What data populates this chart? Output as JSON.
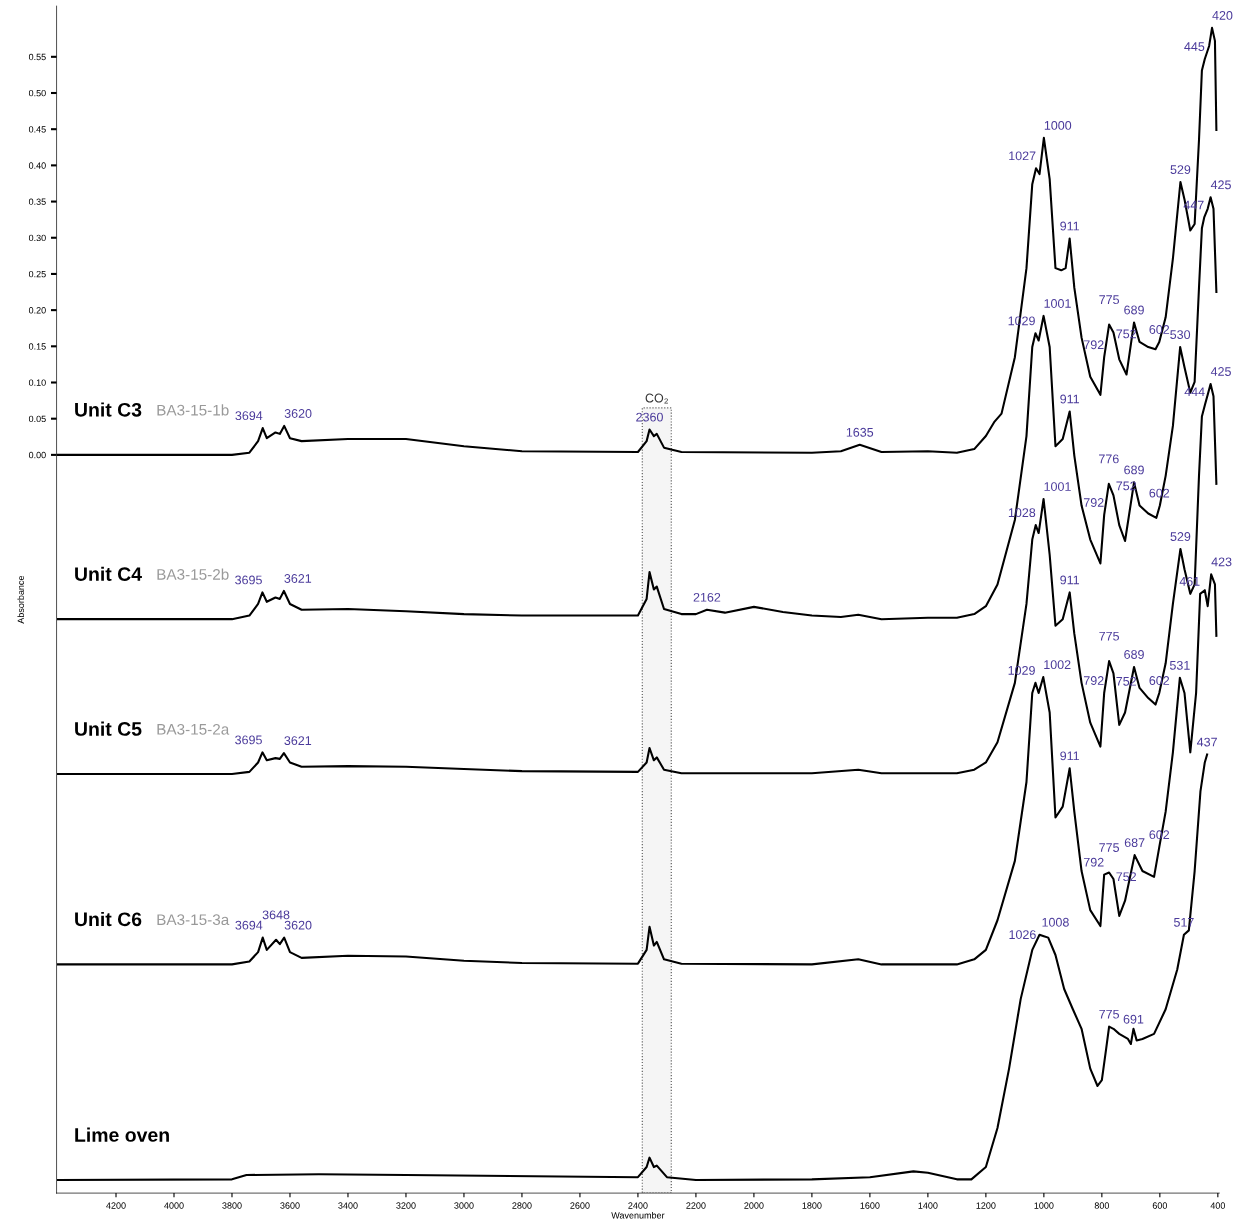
{
  "chart_data": {
    "type": "line",
    "xlabel": "Wavenumber",
    "ylabel": "Absorbance",
    "xlim": [
      4405,
      395
    ],
    "ylim": [
      -1.02,
      0.62
    ],
    "xticks": [
      4200,
      4000,
      3800,
      3600,
      3400,
      3200,
      3000,
      2800,
      2600,
      2400,
      2200,
      2000,
      1800,
      1600,
      1400,
      1200,
      1000,
      800,
      600,
      400
    ],
    "yticks": [
      {
        "value": 0,
        "label": "0.00"
      },
      {
        "value": 0.05,
        "label": "0.05"
      },
      {
        "value": 0.1,
        "label": "0.10"
      },
      {
        "value": 0.15,
        "label": "0.15"
      },
      {
        "value": 0.2,
        "label": "0.20"
      },
      {
        "value": 0.25,
        "label": "0.25"
      },
      {
        "value": 0.3,
        "label": "0.30"
      },
      {
        "value": 0.35,
        "label": "0.35"
      },
      {
        "value": 0.4,
        "label": "0.40"
      },
      {
        "value": 0.45,
        "label": "0.45"
      },
      {
        "value": 0.5,
        "label": "0.50"
      },
      {
        "value": 0.55,
        "label": "0.55"
      }
    ],
    "tick_labels": true,
    "grid": false,
    "legend": false,
    "marker": "none",
    "line_style": "solid",
    "bands": [
      {
        "axis": "x",
        "from": 2385,
        "to": 2285,
        "label": "CO₂",
        "color": "#555555"
      }
    ],
    "series": [
      {
        "name": "Unit C3",
        "color": "#000000",
        "x": [
          4400,
          3800,
          3740,
          3710,
          3694,
          3680,
          3650,
          3635,
          3620,
          3600,
          3560,
          3400,
          3200,
          3000,
          2800,
          2400,
          2370,
          2360,
          2345,
          2335,
          2310,
          2250,
          1800,
          1700,
          1635,
          1560,
          1400,
          1300,
          1240,
          1200,
          1170,
          1146,
          1100,
          1060,
          1040,
          1027,
          1015,
          1000,
          980,
          960,
          940,
          925,
          911,
          895,
          870,
          840,
          805,
          792,
          775,
          760,
          740,
          715,
          689,
          670,
          640,
          615,
          602,
          580,
          555,
          529,
          515,
          495,
          480,
          465,
          455,
          445,
          430,
          420,
          410,
          405
        ],
        "values": [
          0,
          0,
          0.003,
          0.019,
          0.037,
          0.023,
          0.031,
          0.029,
          0.04,
          0.023,
          0.019,
          0.022,
          0.022,
          0.012,
          0.005,
          0.004,
          0.019,
          0.035,
          0.026,
          0.029,
          0.01,
          0.004,
          0.003,
          0.005,
          0.014,
          0.004,
          0.005,
          0.003,
          0.008,
          0.026,
          0.046,
          0.057,
          0.135,
          0.258,
          0.374,
          0.396,
          0.388,
          0.438,
          0.381,
          0.258,
          0.255,
          0.258,
          0.299,
          0.231,
          0.162,
          0.108,
          0.083,
          0.135,
          0.18,
          0.169,
          0.132,
          0.111,
          0.183,
          0.156,
          0.149,
          0.146,
          0.156,
          0.19,
          0.271,
          0.377,
          0.353,
          0.31,
          0.319,
          0.435,
          0.531,
          0.547,
          0.565,
          0.59,
          0.572,
          0.449
        ]
      },
      {
        "name": "Unit C4",
        "color": "#000000",
        "x": [
          4400,
          3800,
          3740,
          3710,
          3695,
          3680,
          3650,
          3635,
          3621,
          3600,
          3560,
          3400,
          3200,
          3000,
          2800,
          2400,
          2370,
          2360,
          2345,
          2335,
          2310,
          2250,
          2200,
          2162,
          2100,
          2000,
          1900,
          1800,
          1700,
          1640,
          1560,
          1400,
          1300,
          1240,
          1200,
          1160,
          1100,
          1060,
          1040,
          1029,
          1018,
          1001,
          980,
          960,
          935,
          911,
          895,
          870,
          840,
          805,
          792,
          776,
          760,
          740,
          720,
          689,
          670,
          640,
          612,
          600,
          580,
          555,
          530,
          515,
          495,
          480,
          465,
          455,
          447,
          435,
          425,
          415,
          405
        ],
        "values": [
          -0.227,
          -0.227,
          -0.222,
          -0.206,
          -0.19,
          -0.203,
          -0.197,
          -0.199,
          -0.188,
          -0.206,
          -0.214,
          -0.213,
          -0.216,
          -0.22,
          -0.222,
          -0.222,
          -0.199,
          -0.162,
          -0.186,
          -0.182,
          -0.213,
          -0.22,
          -0.22,
          -0.214,
          -0.218,
          -0.21,
          -0.217,
          -0.222,
          -0.224,
          -0.221,
          -0.227,
          -0.225,
          -0.225,
          -0.22,
          -0.209,
          -0.179,
          -0.09,
          0.026,
          0.149,
          0.168,
          0.158,
          0.192,
          0.149,
          0.012,
          0.022,
          0.06,
          -0.001,
          -0.07,
          -0.117,
          -0.15,
          -0.083,
          -0.04,
          -0.056,
          -0.097,
          -0.119,
          -0.038,
          -0.07,
          -0.081,
          -0.087,
          -0.07,
          -0.029,
          0.04,
          0.149,
          0.121,
          0.086,
          0.101,
          0.231,
          0.313,
          0.328,
          0.34,
          0.356,
          0.34,
          0.225
        ]
      },
      {
        "name": "Unit C5",
        "color": "#000000",
        "x": [
          4400,
          3800,
          3740,
          3710,
          3695,
          3680,
          3650,
          3635,
          3621,
          3600,
          3560,
          3400,
          3200,
          3000,
          2800,
          2400,
          2370,
          2360,
          2345,
          2335,
          2310,
          2250,
          1800,
          1640,
          1560,
          1300,
          1240,
          1200,
          1160,
          1100,
          1060,
          1040,
          1028,
          1018,
          1001,
          980,
          960,
          935,
          911,
          895,
          870,
          840,
          805,
          792,
          775,
          760,
          740,
          720,
          689,
          670,
          640,
          615,
          602,
          580,
          555,
          529,
          515,
          495,
          480,
          465,
          455,
          444,
          435,
          425,
          415,
          405
        ],
        "values": [
          -0.441,
          -0.441,
          -0.438,
          -0.425,
          -0.411,
          -0.422,
          -0.419,
          -0.42,
          -0.412,
          -0.425,
          -0.431,
          -0.43,
          -0.431,
          -0.434,
          -0.437,
          -0.438,
          -0.425,
          -0.405,
          -0.422,
          -0.418,
          -0.435,
          -0.44,
          -0.44,
          -0.435,
          -0.44,
          -0.44,
          -0.435,
          -0.425,
          -0.397,
          -0.315,
          -0.206,
          -0.117,
          -0.097,
          -0.108,
          -0.061,
          -0.138,
          -0.236,
          -0.227,
          -0.19,
          -0.247,
          -0.315,
          -0.37,
          -0.403,
          -0.329,
          -0.285,
          -0.302,
          -0.373,
          -0.356,
          -0.293,
          -0.322,
          -0.336,
          -0.345,
          -0.329,
          -0.288,
          -0.206,
          -0.13,
          -0.158,
          -0.192,
          -0.179,
          -0.029,
          0.053,
          0.07,
          0.083,
          0.098,
          0.081,
          -0.04
        ]
      },
      {
        "name": "Unit C6",
        "color": "#000000",
        "x": [
          4400,
          3800,
          3740,
          3710,
          3694,
          3680,
          3648,
          3635,
          3620,
          3600,
          3560,
          3400,
          3200,
          3000,
          2800,
          2400,
          2370,
          2360,
          2345,
          2335,
          2310,
          2250,
          1800,
          1640,
          1560,
          1300,
          1240,
          1200,
          1160,
          1100,
          1060,
          1040,
          1029,
          1018,
          1002,
          980,
          960,
          935,
          911,
          895,
          870,
          840,
          805,
          792,
          775,
          760,
          740,
          720,
          687,
          660,
          620,
          602,
          580,
          555,
          531,
          515,
          495,
          475,
          461,
          445,
          435,
          423,
          410,
          405
        ],
        "values": [
          -0.704,
          -0.704,
          -0.7,
          -0.687,
          -0.667,
          -0.684,
          -0.67,
          -0.676,
          -0.667,
          -0.687,
          -0.695,
          -0.692,
          -0.693,
          -0.699,
          -0.702,
          -0.703,
          -0.684,
          -0.652,
          -0.678,
          -0.673,
          -0.697,
          -0.703,
          -0.704,
          -0.697,
          -0.704,
          -0.704,
          -0.697,
          -0.684,
          -0.643,
          -0.561,
          -0.452,
          -0.329,
          -0.315,
          -0.329,
          -0.307,
          -0.356,
          -0.501,
          -0.486,
          -0.433,
          -0.493,
          -0.575,
          -0.629,
          -0.651,
          -0.58,
          -0.577,
          -0.586,
          -0.637,
          -0.616,
          -0.553,
          -0.575,
          -0.583,
          -0.542,
          -0.493,
          -0.411,
          -0.308,
          -0.329,
          -0.411,
          -0.329,
          -0.192,
          -0.187,
          -0.209,
          -0.165,
          -0.179,
          -0.25
        ]
      },
      {
        "name": "Lime oven",
        "color": "#000000",
        "x": [
          4400,
          3800,
          3750,
          3500,
          3200,
          2400,
          2370,
          2360,
          2345,
          2335,
          2300,
          2200,
          1800,
          1600,
          1450,
          1400,
          1300,
          1250,
          1200,
          1160,
          1120,
          1080,
          1040,
          1015,
          1000,
          985,
          960,
          930,
          900,
          870,
          840,
          815,
          800,
          785,
          775,
          760,
          740,
          710,
          700,
          691,
          680,
          660,
          620,
          580,
          540,
          517,
          500,
          480,
          460,
          445,
          437
        ],
        "values": [
          -1.002,
          -1.001,
          -0.995,
          -0.994,
          -0.995,
          -0.998,
          -0.984,
          -0.971,
          -0.984,
          -0.982,
          -0.998,
          -1.002,
          -1.001,
          -0.998,
          -0.99,
          -0.992,
          -1.001,
          -1.001,
          -0.984,
          -0.93,
          -0.848,
          -0.752,
          -0.684,
          -0.663,
          -0.665,
          -0.667,
          -0.691,
          -0.738,
          -0.766,
          -0.793,
          -0.848,
          -0.872,
          -0.864,
          -0.82,
          -0.79,
          -0.793,
          -0.8,
          -0.807,
          -0.814,
          -0.793,
          -0.809,
          -0.807,
          -0.8,
          -0.766,
          -0.711,
          -0.663,
          -0.657,
          -0.575,
          -0.465,
          -0.425,
          -0.414
        ]
      }
    ],
    "annotations": [
      "BA3-15-1b",
      "BA3-15-2b",
      "BA3-15-2a",
      "BA3-15-3a",
      {
        "text": "3694",
        "x": 3694,
        "y": 0.037
      },
      {
        "text": "3620",
        "x": 3620,
        "y": 0.04
      },
      {
        "text": "2360",
        "x": 2360,
        "y": 0.035
      },
      {
        "text": "1635",
        "x": 1635,
        "y": 0.014
      },
      {
        "text": "1027",
        "x": 1027,
        "y": 0.396
      },
      {
        "text": "1000",
        "x": 1000,
        "y": 0.438
      },
      {
        "text": "911",
        "x": 911,
        "y": 0.299
      },
      {
        "text": "792",
        "x": 792,
        "y": 0.135
      },
      {
        "text": "775",
        "x": 775,
        "y": 0.18
      },
      {
        "text": "752",
        "x": 752,
        "y": 0.15
      },
      {
        "text": "689",
        "x": 689,
        "y": 0.183
      },
      {
        "text": "602",
        "x": 602,
        "y": 0.156
      },
      {
        "text": "529",
        "x": 529,
        "y": 0.377
      },
      {
        "text": "445",
        "x": 445,
        "y": 0.547
      },
      {
        "text": "420",
        "x": 420,
        "y": 0.59
      },
      {
        "text": "3695",
        "x": 3695,
        "y": -0.19
      },
      {
        "text": "3621",
        "x": 3621,
        "y": -0.188
      },
      {
        "text": "2162",
        "x": 2162,
        "y": -0.214
      },
      {
        "text": "1029",
        "x": 1029,
        "y": 0.168
      },
      {
        "text": "1001",
        "x": 1001,
        "y": 0.192
      },
      {
        "text": "911",
        "x": 911,
        "y": 0.06
      },
      {
        "text": "792",
        "x": 792,
        "y": -0.083
      },
      {
        "text": "776",
        "x": 776,
        "y": -0.04
      },
      {
        "text": "752",
        "x": 752,
        "y": -0.06
      },
      {
        "text": "689",
        "x": 689,
        "y": -0.038
      },
      {
        "text": "602",
        "x": 602,
        "y": -0.07
      },
      {
        "text": "530",
        "x": 530,
        "y": 0.149
      },
      {
        "text": "447",
        "x": 447,
        "y": 0.328
      },
      {
        "text": "425",
        "x": 425,
        "y": 0.356
      },
      {
        "text": "3695",
        "x": 3695,
        "y": -0.411
      },
      {
        "text": "3621",
        "x": 3621,
        "y": -0.412
      },
      {
        "text": "1028",
        "x": 1028,
        "y": -0.097
      },
      {
        "text": "1001",
        "x": 1001,
        "y": -0.061
      },
      {
        "text": "911",
        "x": 911,
        "y": -0.19
      },
      {
        "text": "792",
        "x": 792,
        "y": -0.329
      },
      {
        "text": "775",
        "x": 775,
        "y": -0.285
      },
      {
        "text": "752",
        "x": 752,
        "y": -0.33
      },
      {
        "text": "689",
        "x": 689,
        "y": -0.293
      },
      {
        "text": "602",
        "x": 602,
        "y": -0.329
      },
      {
        "text": "529",
        "x": 529,
        "y": -0.13
      },
      {
        "text": "444",
        "x": 444,
        "y": 0.07
      },
      {
        "text": "425",
        "x": 425,
        "y": 0.098
      },
      {
        "text": "3694",
        "x": 3694,
        "y": -0.667
      },
      {
        "text": "3648",
        "x": 3648,
        "y": -0.67
      },
      {
        "text": "3620",
        "x": 3620,
        "y": -0.667
      },
      {
        "text": "1029",
        "x": 1029,
        "y": -0.315
      },
      {
        "text": "1002",
        "x": 1002,
        "y": -0.307
      },
      {
        "text": "911",
        "x": 911,
        "y": -0.433
      },
      {
        "text": "792",
        "x": 792,
        "y": -0.58
      },
      {
        "text": "775",
        "x": 775,
        "y": -0.577
      },
      {
        "text": "752",
        "x": 752,
        "y": -0.6
      },
      {
        "text": "687",
        "x": 687,
        "y": -0.553
      },
      {
        "text": "602",
        "x": 602,
        "y": -0.542
      },
      {
        "text": "531",
        "x": 531,
        "y": -0.308
      },
      {
        "text": "461",
        "x": 461,
        "y": -0.192
      },
      {
        "text": "423",
        "x": 423,
        "y": -0.165
      },
      {
        "text": "1026",
        "x": 1026,
        "y": -0.68
      },
      {
        "text": "1008",
        "x": 1008,
        "y": -0.663
      },
      {
        "text": "775",
        "x": 775,
        "y": -0.79
      },
      {
        "text": "691",
        "x": 691,
        "y": -0.797
      },
      {
        "text": "517",
        "x": 517,
        "y": -0.663
      },
      {
        "text": "437",
        "x": 437,
        "y": -0.414
      }
    ]
  }
}
